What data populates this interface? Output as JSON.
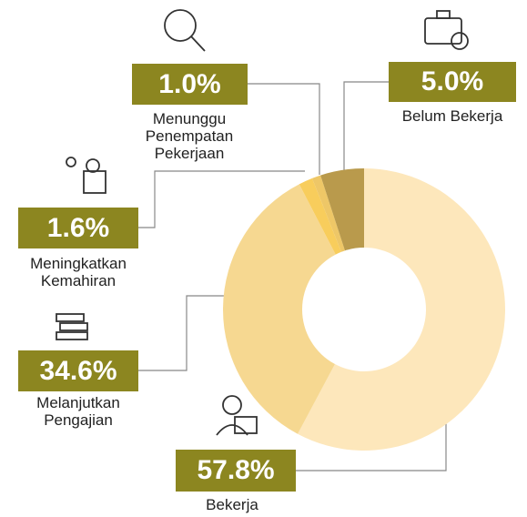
{
  "chart_data": {
    "type": "pie",
    "categories": [
      "Bekerja",
      "Melanjutkan Pengajian",
      "Meningkatkan Kemahiran",
      "Menunggu Penempatan Pekerjaan",
      "Belum Bekerja"
    ],
    "values": [
      57.8,
      34.6,
      1.6,
      1.0,
      5.0
    ],
    "value_labels": [
      "57.8%",
      "34.6%",
      "1.6%",
      "1.0%",
      "5.0%"
    ],
    "colors": [
      "#fde7bb",
      "#f6d891",
      "#f8cd5c",
      "#eec767",
      "#b99a4c"
    ]
  }
}
